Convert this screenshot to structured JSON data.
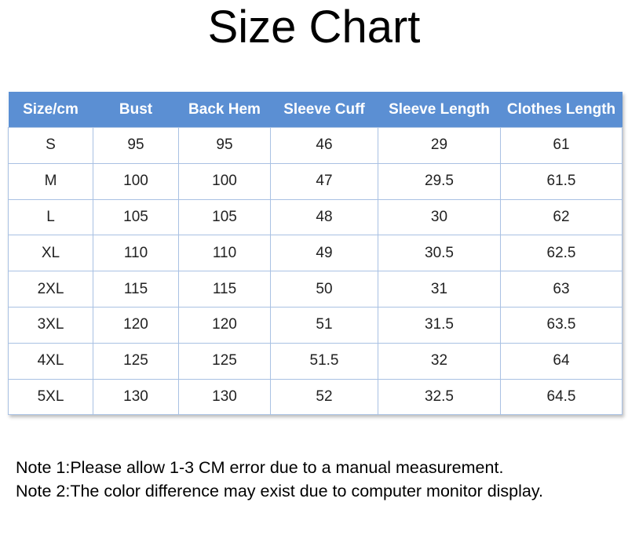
{
  "header": {
    "title": "Size Chart"
  },
  "table": {
    "columns": [
      "Size/cm",
      "Bust",
      "Back Hem",
      "Sleeve Cuff",
      "Sleeve Length",
      "Clothes Length"
    ],
    "rows": [
      [
        "S",
        95,
        95,
        46,
        29,
        61
      ],
      [
        "M",
        100,
        100,
        47,
        29.5,
        61.5
      ],
      [
        "L",
        105,
        105,
        48,
        30,
        62
      ],
      [
        "XL",
        110,
        110,
        49,
        30.5,
        62.5
      ],
      [
        "2XL",
        115,
        115,
        50,
        31,
        63
      ],
      [
        "3XL",
        120,
        120,
        51,
        31.5,
        63.5
      ],
      [
        "4XL",
        125,
        125,
        51.5,
        32,
        64
      ],
      [
        "5XL",
        130,
        130,
        52,
        32.5,
        64.5
      ]
    ]
  },
  "notes": [
    "Note 1:Please allow 1-3 CM error due to a manual measurement.",
    "Note 2:The color difference may exist due to computer monitor display."
  ]
}
